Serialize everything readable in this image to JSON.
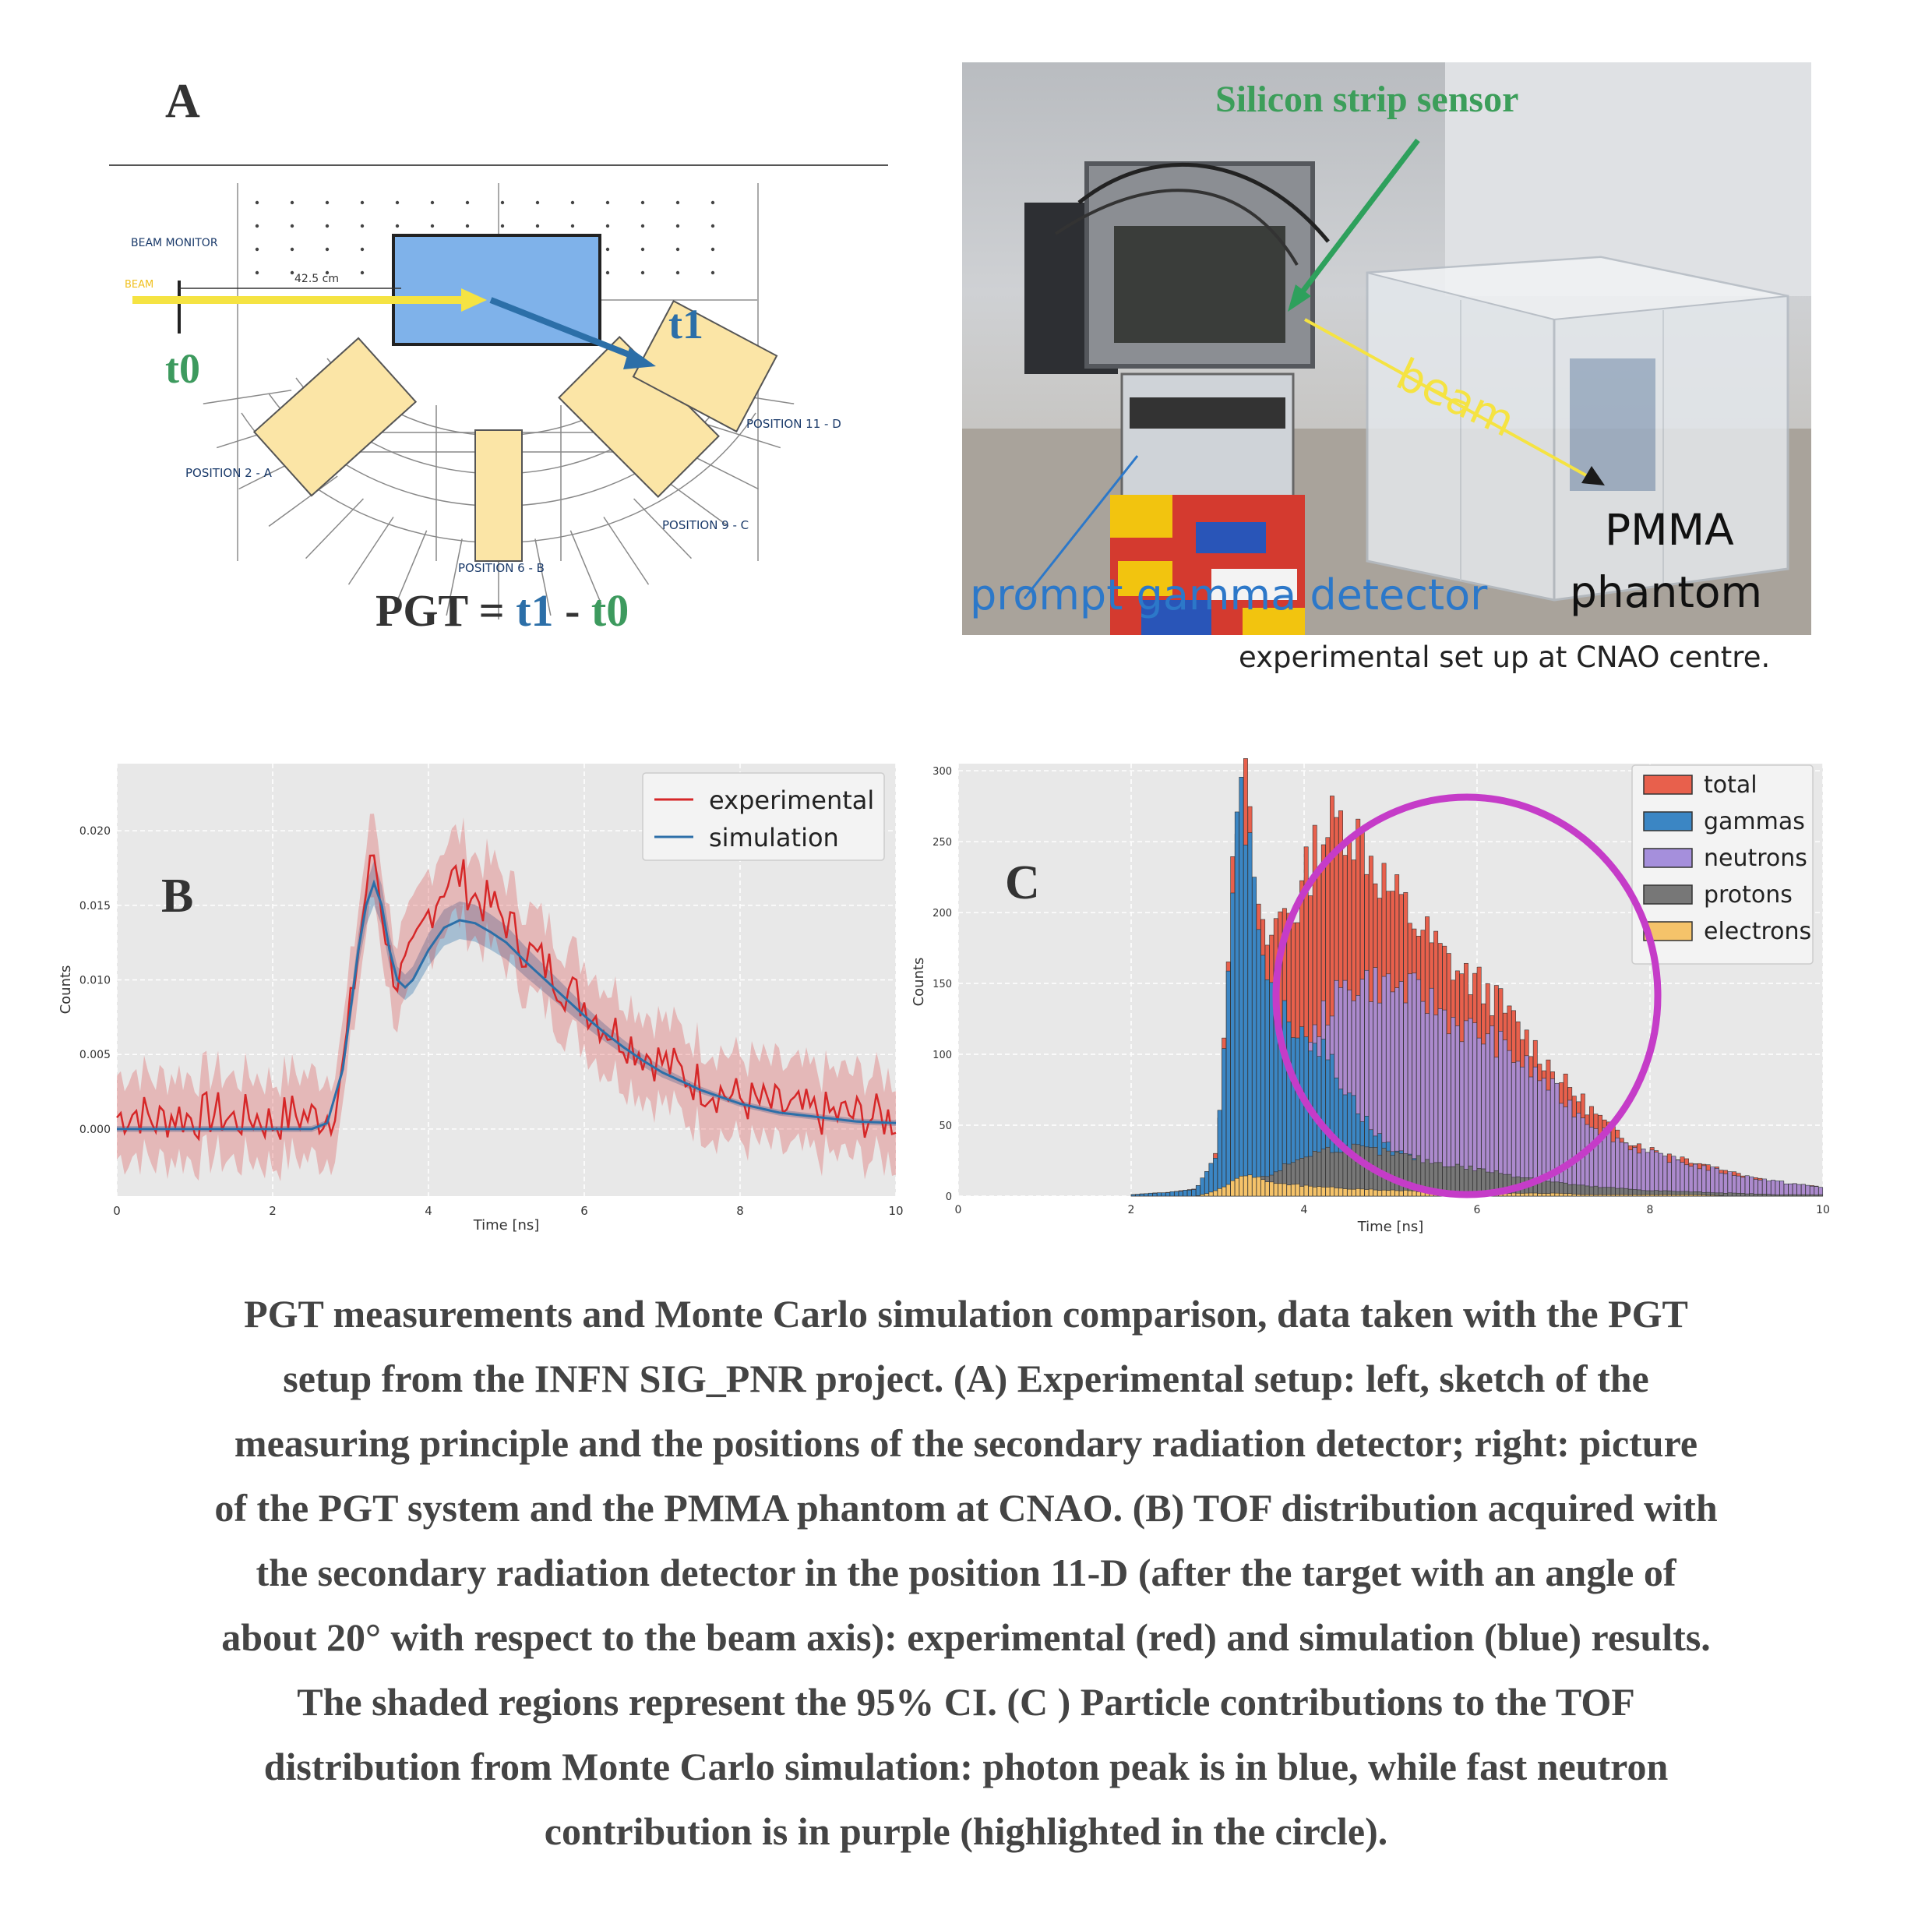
{
  "panel_a": {
    "letter": "A",
    "labels": {
      "beam_monitor": "BEAM MONITOR",
      "beam": "BEAM",
      "distance": "42.5 cm",
      "t0": "t0",
      "t1": "t1",
      "pos2": "POSITION 2 - A",
      "pos6": "POSITION 6 - B",
      "pos9": "POSITION 9 - C",
      "pos11": "POSITION 11 - D"
    },
    "formula": {
      "lhs": "PGT = ",
      "t1": "t1",
      "minus": " - ",
      "t0": "t0"
    }
  },
  "photo": {
    "silicon": "Silicon strip sensor",
    "beam": "beam",
    "pmma_line1": "PMMA",
    "pmma_line2": "phantom",
    "prompt_gamma": "prompt gamma detector",
    "caption": "experimental set up at CNAO centre."
  },
  "colors": {
    "red": "#d62728",
    "blue": "#2c6fa8",
    "green": "#3d9a5e",
    "yellow": "#f5e342",
    "magenta": "#c53cc8",
    "panel_yellow": "#fbe5a6",
    "phantom_blue": "#7fb2ea"
  },
  "chart_data": [
    {
      "type": "line",
      "panel": "B",
      "xlabel": "Time [ns]",
      "ylabel": "Counts",
      "xlim": [
        0,
        10
      ],
      "ylim": [
        -0.0045,
        0.0245
      ],
      "xticks": [
        "0",
        "2",
        "4",
        "6",
        "8",
        "10"
      ],
      "yticks": [
        "0.000",
        "0.005",
        "0.010",
        "0.015",
        "0.020"
      ],
      "grid": true,
      "legend_position": "top-right",
      "shaded_interval": "95% CI",
      "series": [
        {
          "name": "experimental",
          "color": "#d62728",
          "x": [
            0,
            0.25,
            0.5,
            0.75,
            1,
            1.25,
            1.5,
            1.75,
            2,
            2.25,
            2.5,
            2.75,
            2.9,
            3.0,
            3.1,
            3.2,
            3.3,
            3.4,
            3.5,
            3.6,
            3.7,
            3.8,
            3.9,
            4.0,
            4.2,
            4.4,
            4.6,
            4.8,
            5.0,
            5.25,
            5.5,
            5.75,
            6,
            6.25,
            6.5,
            6.75,
            7,
            7.5,
            8,
            8.5,
            9,
            9.5,
            10
          ],
          "y": [
            0.0008,
            0.0012,
            0.0005,
            0.001,
            0.0007,
            0.0011,
            0.0006,
            0.0009,
            0.0004,
            0.001,
            0.0008,
            0.001,
            0.004,
            0.008,
            0.012,
            0.016,
            0.0185,
            0.015,
            0.0115,
            0.01,
            0.0105,
            0.0115,
            0.013,
            0.0145,
            0.0165,
            0.017,
            0.0155,
            0.015,
            0.014,
            0.012,
            0.011,
            0.0095,
            0.0085,
            0.007,
            0.0062,
            0.0052,
            0.0045,
            0.003,
            0.002,
            0.0014,
            0.001,
            0.0009,
            0.0007
          ]
        },
        {
          "name": "simulation",
          "color": "#2c6fa8",
          "x": [
            0,
            0.5,
            1,
            1.5,
            2,
            2.5,
            2.7,
            2.9,
            3.0,
            3.1,
            3.2,
            3.3,
            3.4,
            3.5,
            3.6,
            3.7,
            3.8,
            3.9,
            4.0,
            4.2,
            4.4,
            4.6,
            4.8,
            5.0,
            5.25,
            5.5,
            5.75,
            6,
            6.25,
            6.5,
            6.75,
            7,
            7.5,
            8,
            8.5,
            9,
            9.5,
            10
          ],
          "y": [
            0.0,
            0.0,
            0.0,
            0.0,
            0.0,
            0.0,
            0.0004,
            0.004,
            0.008,
            0.012,
            0.015,
            0.0165,
            0.015,
            0.012,
            0.01,
            0.0095,
            0.01,
            0.011,
            0.012,
            0.0135,
            0.014,
            0.0138,
            0.0132,
            0.0125,
            0.0112,
            0.01,
            0.0088,
            0.0076,
            0.0065,
            0.0055,
            0.0046,
            0.0038,
            0.0026,
            0.0017,
            0.0011,
            0.0008,
            0.0005,
            0.0004
          ]
        }
      ]
    },
    {
      "type": "bar",
      "panel": "C",
      "xlabel": "Time [ns]",
      "ylabel": "Counts",
      "xlim": [
        0,
        10
      ],
      "ylim": [
        0,
        305
      ],
      "xticks": [
        "0",
        "2",
        "4",
        "6",
        "8",
        "10"
      ],
      "yticks": [
        "0",
        "50",
        "100",
        "150",
        "200",
        "250",
        "300"
      ],
      "grid": true,
      "legend_position": "top-right",
      "stacked": false,
      "x": [
        2.0,
        2.25,
        2.5,
        2.75,
        3.0,
        3.1,
        3.2,
        3.3,
        3.4,
        3.5,
        3.6,
        3.7,
        3.8,
        3.9,
        4.0,
        4.1,
        4.2,
        4.3,
        4.4,
        4.5,
        4.6,
        4.7,
        4.8,
        4.9,
        5.0,
        5.2,
        5.4,
        5.6,
        5.8,
        6.0,
        6.2,
        6.4,
        6.6,
        6.8,
        7.0,
        7.25,
        7.5,
        7.75,
        8.0,
        8.5,
        9.0,
        9.5,
        10.0
      ],
      "series": [
        {
          "name": "total",
          "color": "#e8604c",
          "values": [
            1,
            2,
            3,
            5,
            30,
            150,
            270,
            300,
            240,
            180,
            180,
            195,
            205,
            200,
            220,
            240,
            255,
            260,
            262,
            268,
            255,
            250,
            235,
            225,
            215,
            200,
            185,
            170,
            158,
            150,
            140,
            125,
            110,
            95,
            80,
            65,
            50,
            40,
            33,
            25,
            16,
            10,
            6
          ]
        },
        {
          "name": "gammas",
          "color": "#3b86c4",
          "values": [
            1,
            2,
            3,
            5,
            28,
            140,
            258,
            290,
            230,
            160,
            140,
            130,
            125,
            120,
            118,
            112,
            105,
            95,
            85,
            75,
            65,
            55,
            45,
            40,
            35,
            28,
            22,
            18,
            15,
            12,
            10,
            8,
            7,
            6,
            5,
            4,
            3,
            2,
            2,
            1,
            1,
            1,
            0
          ]
        },
        {
          "name": "neutrons",
          "color": "#a58fdc",
          "values": [
            0,
            0,
            0,
            0,
            0,
            1,
            2,
            3,
            4,
            5,
            10,
            25,
            45,
            65,
            85,
            110,
            125,
            135,
            140,
            148,
            150,
            152,
            150,
            150,
            148,
            145,
            140,
            130,
            120,
            115,
            110,
            100,
            90,
            80,
            68,
            55,
            45,
            36,
            30,
            22,
            15,
            10,
            6
          ]
        },
        {
          "name": "protons",
          "color": "#777777",
          "values": [
            0,
            0,
            0,
            0,
            2,
            5,
            10,
            12,
            12,
            12,
            15,
            18,
            22,
            25,
            28,
            30,
            32,
            33,
            34,
            34,
            34,
            33,
            32,
            31,
            30,
            28,
            25,
            23,
            21,
            19,
            17,
            15,
            13,
            11,
            9,
            7,
            6,
            5,
            4,
            3,
            2,
            1,
            1
          ]
        },
        {
          "name": "electrons",
          "color": "#f5c36a",
          "values": [
            0,
            0,
            0,
            0,
            4,
            8,
            12,
            15,
            14,
            12,
            10,
            9,
            8,
            8,
            7,
            7,
            6,
            6,
            6,
            5,
            5,
            5,
            5,
            4,
            4,
            4,
            3,
            3,
            3,
            3,
            2,
            2,
            2,
            2,
            2,
            1,
            1,
            1,
            1,
            1,
            0,
            0,
            0
          ]
        }
      ]
    }
  ],
  "panel_b": {
    "letter": "B"
  },
  "panel_c": {
    "letter": "C"
  },
  "caption": {
    "lines": [
      "PGT measurements and Monte Carlo simulation comparison, data taken with the PGT",
      "setup from the INFN SIG_PNR project. (A) Experimental setup: left, sketch of the",
      "measuring principle and the positions of the secondary radiation detector; right: picture",
      "of the PGT system and the PMMA phantom at CNAO. (B) TOF distribution acquired with",
      "the secondary radiation detector in the position 11-D (after the target with an angle of",
      "about 20° with respect to the beam axis): experimental (red) and simulation (blue) results.",
      "The shaded regions represent the 95% CI. (C ) Particle contributions to the TOF",
      "distribution from Monte Carlo simulation: photon peak is in blue, while fast neutron",
      "contribution is in purple (highlighted in the circle)."
    ]
  }
}
